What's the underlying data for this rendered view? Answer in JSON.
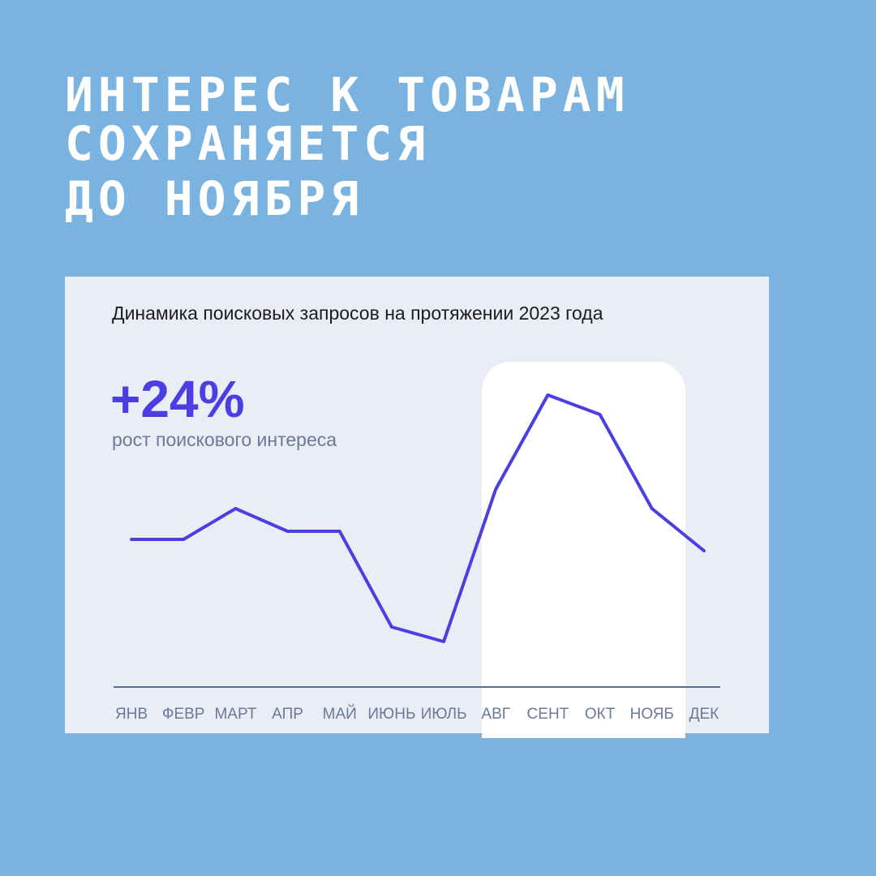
{
  "headline": [
    "ИНТЕРЕС К ТОВАРАМ",
    "СОХРАНЯЕТСЯ",
    "ДО НОЯБРЯ"
  ],
  "chart_data": {
    "type": "line",
    "title": "Динамика поисковых запросов на протяжении 2023 года",
    "annotation": "+24%",
    "annotation_caption": "рост поискового интереса",
    "categories": [
      "ЯНВ",
      "ФЕВР",
      "МАРТ",
      "АПР",
      "МАЙ",
      "ИЮНЬ",
      "ИЮЛЬ",
      "АВГ",
      "СЕНТ",
      "ОКТ",
      "НОЯБ",
      "ДЕК"
    ],
    "values": [
      45.5,
      45.5,
      55,
      48,
      48,
      18.5,
      14,
      61,
      90,
      84,
      55,
      42
    ],
    "color": "#4b3fe3",
    "ylim": [
      0,
      100
    ]
  }
}
